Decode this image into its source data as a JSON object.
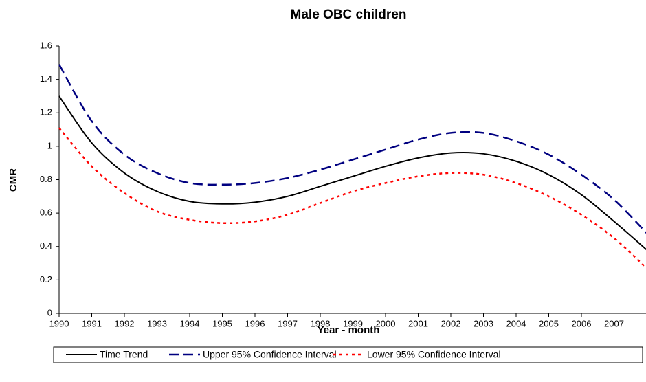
{
  "chart_data": {
    "type": "line",
    "title": "Male OBC children",
    "x_label": "Year - month",
    "y_label": "CMR",
    "x": [
      1990,
      1991,
      1992,
      1993,
      1994,
      1995,
      1996,
      1997,
      1998,
      1999,
      2000,
      2001,
      2002,
      2003,
      2004,
      2005,
      2006,
      2007,
      2008
    ],
    "xlim": [
      1990,
      2008
    ],
    "xticks": [
      1990,
      1991,
      1992,
      1993,
      1994,
      1995,
      1996,
      1997,
      1998,
      1999,
      2000,
      2001,
      2002,
      2003,
      2004,
      2005,
      2006,
      2007
    ],
    "ylim": [
      0,
      1.6
    ],
    "yticks": [
      0,
      0.2,
      0.4,
      0.6,
      0.8,
      1,
      1.2,
      1.4,
      1.6
    ],
    "grid": false,
    "legend_position": "bottom",
    "series": [
      {
        "name": "Time Trend",
        "color": "#000000",
        "dash": "solid",
        "values": [
          1.3,
          1.02,
          0.84,
          0.73,
          0.67,
          0.655,
          0.665,
          0.7,
          0.76,
          0.82,
          0.88,
          0.93,
          0.96,
          0.955,
          0.91,
          0.83,
          0.71,
          0.55,
          0.38
        ]
      },
      {
        "name": "Upper 95% Confidence Interval",
        "color": "#000080",
        "dash": "dashed",
        "values": [
          1.49,
          1.15,
          0.95,
          0.84,
          0.78,
          0.77,
          0.78,
          0.81,
          0.86,
          0.92,
          0.98,
          1.04,
          1.08,
          1.08,
          1.03,
          0.95,
          0.83,
          0.68,
          0.48
        ]
      },
      {
        "name": "Lower 95% Confidence Interval",
        "color": "#ff0000",
        "dash": "dotted",
        "values": [
          1.11,
          0.88,
          0.72,
          0.61,
          0.56,
          0.54,
          0.55,
          0.59,
          0.66,
          0.73,
          0.78,
          0.82,
          0.84,
          0.83,
          0.78,
          0.7,
          0.59,
          0.45,
          0.27
        ]
      }
    ]
  }
}
